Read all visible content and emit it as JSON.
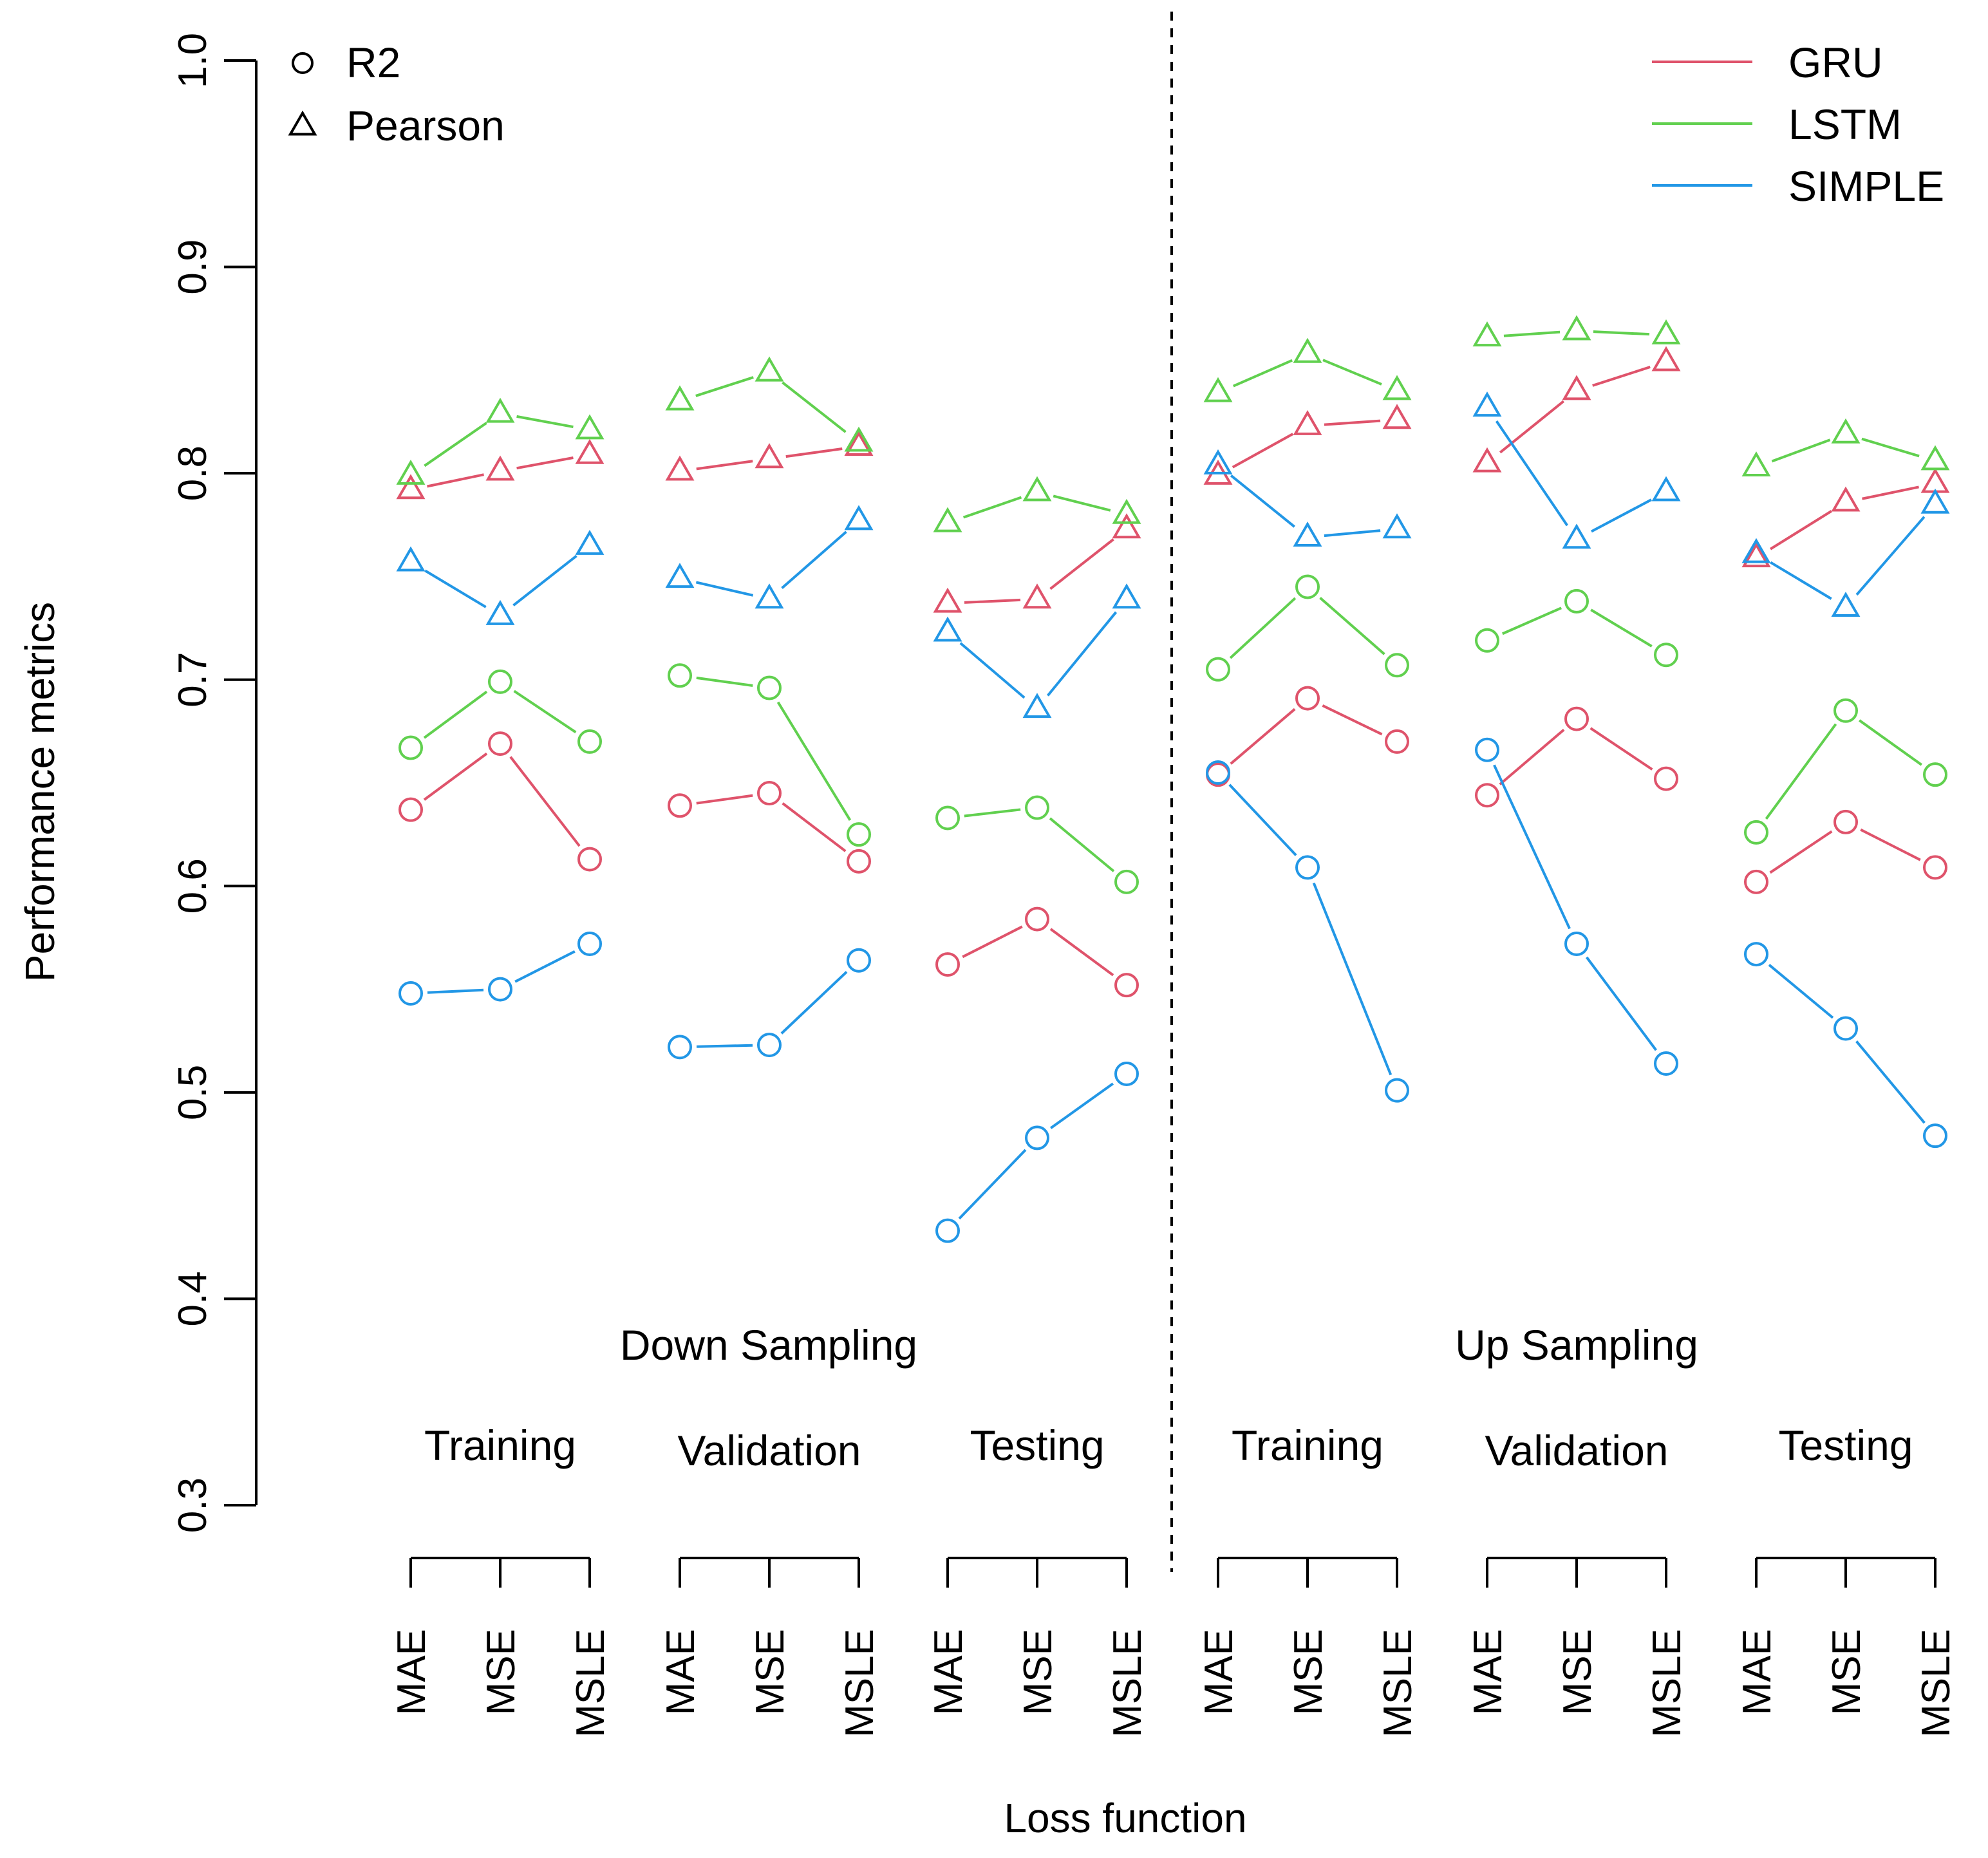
{
  "chart_data": {
    "type": "line",
    "xlabel": "Loss function",
    "ylabel": "Performance metrics",
    "ylim": [
      0.3,
      1.0
    ],
    "yticks": [
      "0.3",
      "0.4",
      "0.5",
      "0.6",
      "0.7",
      "0.8",
      "0.9",
      "1.0"
    ],
    "x_categories": [
      "MAE",
      "MSE",
      "MSLE"
    ],
    "sampling_groups": [
      {
        "label": "Down Sampling",
        "phases": [
          "Training",
          "Validation",
          "Testing"
        ]
      },
      {
        "label": "Up Sampling",
        "phases": [
          "Training",
          "Validation",
          "Testing"
        ]
      }
    ],
    "metric_legend": [
      {
        "label": "R2",
        "symbol": "circle"
      },
      {
        "label": "Pearson",
        "symbol": "triangle"
      }
    ],
    "model_legend": [
      {
        "label": "GRU",
        "color": "#DF536B"
      },
      {
        "label": "LSTM",
        "color": "#61D04F"
      },
      {
        "label": "SIMPLE",
        "color": "#2297E6"
      }
    ],
    "series": [
      {
        "model": "GRU",
        "metric": "Pearson",
        "color": "#DF536B",
        "groups": [
          [
            0.792,
            0.801,
            0.809
          ],
          [
            0.801,
            0.807,
            0.813
          ],
          [
            0.737,
            0.739,
            0.773
          ],
          [
            0.799,
            0.823,
            0.826
          ],
          [
            0.805,
            0.84,
            0.854
          ],
          [
            0.759,
            0.786,
            0.795
          ]
        ]
      },
      {
        "model": "LSTM",
        "metric": "Pearson",
        "color": "#61D04F",
        "groups": [
          [
            0.799,
            0.829,
            0.821
          ],
          [
            0.835,
            0.849,
            0.815
          ],
          [
            0.776,
            0.791,
            0.78
          ],
          [
            0.839,
            0.858,
            0.84
          ],
          [
            0.866,
            0.869,
            0.867
          ],
          [
            0.803,
            0.819,
            0.806
          ]
        ]
      },
      {
        "model": "SIMPLE",
        "metric": "Pearson",
        "color": "#2297E6",
        "groups": [
          [
            0.757,
            0.731,
            0.765
          ],
          [
            0.749,
            0.739,
            0.777
          ],
          [
            0.723,
            0.686,
            0.739
          ],
          [
            0.804,
            0.769,
            0.773
          ],
          [
            0.832,
            0.768,
            0.791
          ],
          [
            0.761,
            0.735,
            0.785
          ]
        ]
      },
      {
        "model": "GRU",
        "metric": "R2",
        "color": "#DF536B",
        "groups": [
          [
            0.637,
            0.669,
            0.613
          ],
          [
            0.639,
            0.645,
            0.612
          ],
          [
            0.562,
            0.584,
            0.552
          ],
          [
            0.654,
            0.691,
            0.67
          ],
          [
            0.644,
            0.681,
            0.652
          ],
          [
            0.602,
            0.631,
            0.609
          ]
        ]
      },
      {
        "model": "LSTM",
        "metric": "R2",
        "color": "#61D04F",
        "groups": [
          [
            0.667,
            0.699,
            0.67
          ],
          [
            0.702,
            0.696,
            0.625
          ],
          [
            0.633,
            0.638,
            0.602
          ],
          [
            0.705,
            0.745,
            0.707
          ],
          [
            0.719,
            0.738,
            0.712
          ],
          [
            0.626,
            0.685,
            0.654
          ]
        ]
      },
      {
        "model": "SIMPLE",
        "metric": "R2",
        "color": "#2297E6",
        "groups": [
          [
            0.548,
            0.55,
            0.572
          ],
          [
            0.522,
            0.523,
            0.564
          ],
          [
            0.433,
            0.478,
            0.509
          ],
          [
            0.655,
            0.609,
            0.501
          ],
          [
            0.666,
            0.572,
            0.514
          ],
          [
            0.567,
            0.531,
            0.479
          ]
        ]
      }
    ]
  }
}
